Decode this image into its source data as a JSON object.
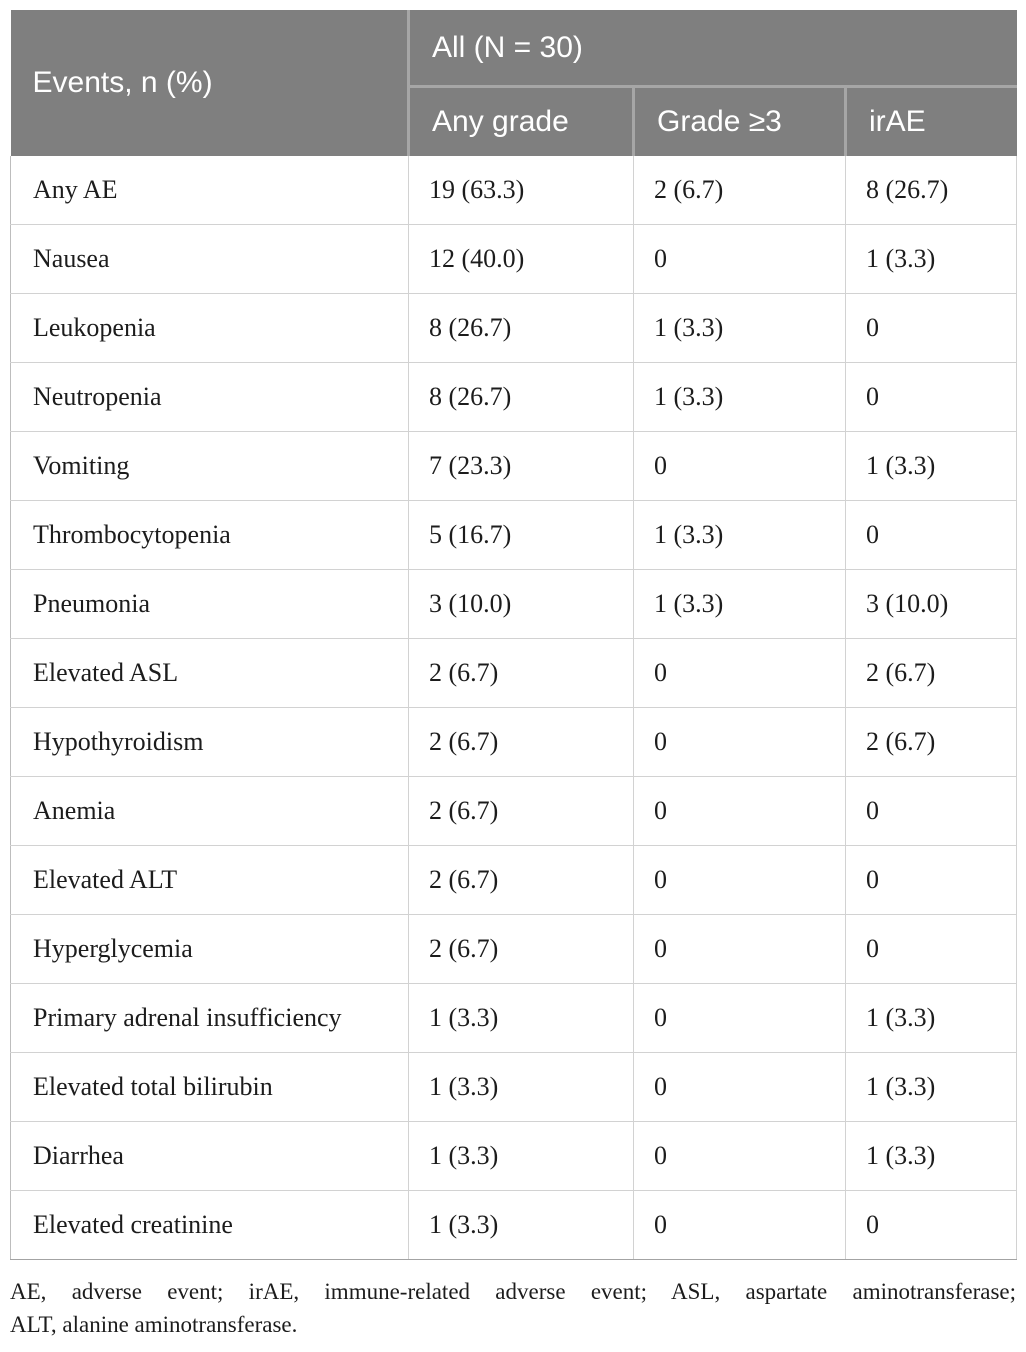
{
  "table": {
    "header": {
      "events_label": "Events, n (%)",
      "group_label": "All (N = 30)",
      "columns": [
        "Any grade",
        "Grade ≥3",
        "irAE"
      ]
    },
    "rows": [
      {
        "label": "Any AE",
        "any_grade": "19 (63.3)",
        "grade_ge3": "2 (6.7)",
        "irae": "8 (26.7)"
      },
      {
        "label": "Nausea",
        "any_grade": "12 (40.0)",
        "grade_ge3": "0",
        "irae": "1 (3.3)"
      },
      {
        "label": "Leukopenia",
        "any_grade": "8 (26.7)",
        "grade_ge3": "1 (3.3)",
        "irae": "0"
      },
      {
        "label": "Neutropenia",
        "any_grade": "8 (26.7)",
        "grade_ge3": "1 (3.3)",
        "irae": "0"
      },
      {
        "label": "Vomiting",
        "any_grade": "7 (23.3)",
        "grade_ge3": "0",
        "irae": "1 (3.3)"
      },
      {
        "label": "Thrombocytopenia",
        "any_grade": "5 (16.7)",
        "grade_ge3": "1 (3.3)",
        "irae": "0"
      },
      {
        "label": "Pneumonia",
        "any_grade": "3 (10.0)",
        "grade_ge3": "1 (3.3)",
        "irae": "3 (10.0)"
      },
      {
        "label": "Elevated ASL",
        "any_grade": "2 (6.7)",
        "grade_ge3": "0",
        "irae": "2 (6.7)"
      },
      {
        "label": "Hypothyroidism",
        "any_grade": "2 (6.7)",
        "grade_ge3": "0",
        "irae": "2 (6.7)"
      },
      {
        "label": "Anemia",
        "any_grade": "2 (6.7)",
        "grade_ge3": "0",
        "irae": "0"
      },
      {
        "label": "Elevated ALT",
        "any_grade": "2 (6.7)",
        "grade_ge3": "0",
        "irae": "0"
      },
      {
        "label": "Hyperglycemia",
        "any_grade": "2 (6.7)",
        "grade_ge3": "0",
        "irae": "0"
      },
      {
        "label": "Primary adrenal insufficiency",
        "any_grade": "1 (3.3)",
        "grade_ge3": "0",
        "irae": "1 (3.3)"
      },
      {
        "label": "Elevated total bilirubin",
        "any_grade": "1 (3.3)",
        "grade_ge3": "0",
        "irae": "1 (3.3)"
      },
      {
        "label": "Diarrhea",
        "any_grade": "1 (3.3)",
        "grade_ge3": "0",
        "irae": "1 (3.3)"
      },
      {
        "label": "Elevated creatinine",
        "any_grade": "1 (3.3)",
        "grade_ge3": "0",
        "irae": "0"
      }
    ]
  },
  "footnote": {
    "line1": "AE, adverse event; irAE, immune-related adverse event; ASL, aspartate aminotransferase;",
    "line2": "ALT, alanine aminotransferase."
  },
  "colors": {
    "header_bg": "#7f7f7f",
    "header_divider": "#a6a6a6",
    "header_text": "#ffffff",
    "body_text": "#1c1c1c",
    "row_border": "#d2d2d2",
    "outer_border": "#bdbdbd",
    "bottom_border": "#a3a3a3",
    "page_bg": "#ffffff"
  }
}
